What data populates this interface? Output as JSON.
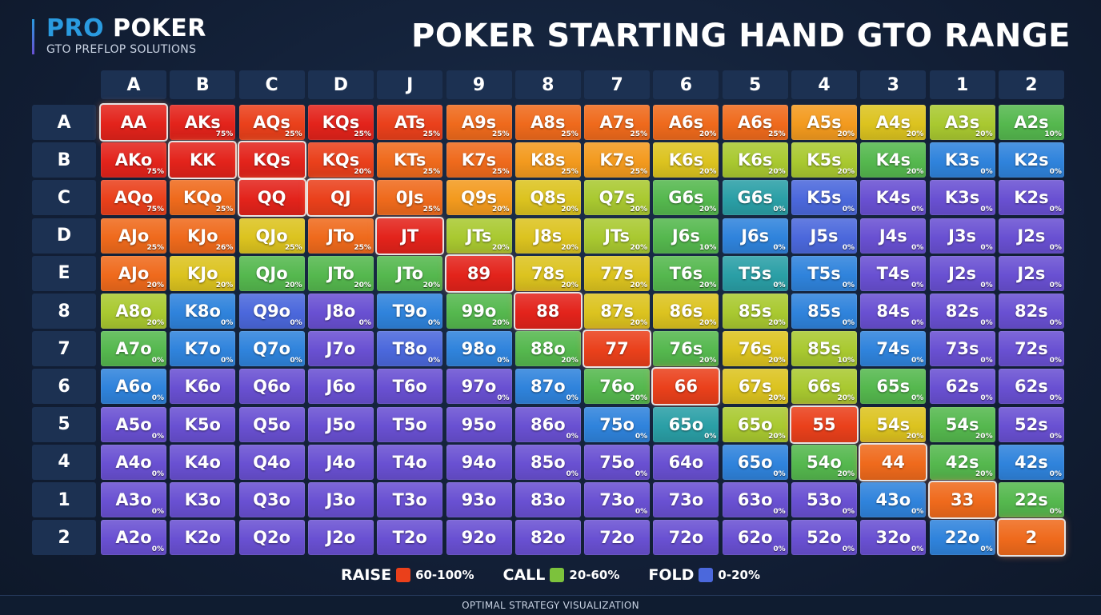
{
  "brand": {
    "pro": "PRO",
    "poker": "POKER",
    "tagline": "GTO PREFLOP SOLUTIONS"
  },
  "title": "POKER STARTING HAND GTO RANGE",
  "table": {
    "columns": [
      "A",
      "B",
      "C",
      "D",
      "J",
      "9",
      "8",
      "7",
      "6",
      "5",
      "4",
      "3",
      "1",
      "2"
    ],
    "rows": [
      {
        "label": "A",
        "cells": [
          {
            "hand": "AA",
            "color": "#e3231b",
            "glow": true
          },
          {
            "hand": "AKs",
            "pct": "75%",
            "color": "#e3231b"
          },
          {
            "hand": "AQs",
            "pct": "25%",
            "color": "#ea401b"
          },
          {
            "hand": "KQs",
            "pct": "25%",
            "color": "#e3231b"
          },
          {
            "hand": "ATs",
            "pct": "25%",
            "color": "#ea401b"
          },
          {
            "hand": "A9s",
            "pct": "25%",
            "color": "#ef6a1c"
          },
          {
            "hand": "A8s",
            "pct": "25%",
            "color": "#ef6a1c"
          },
          {
            "hand": "A7s",
            "pct": "25%",
            "color": "#ef6a1c"
          },
          {
            "hand": "A6s",
            "pct": "20%",
            "color": "#ef6a1c"
          },
          {
            "hand": "A6s",
            "pct": "25%",
            "color": "#ef6a1c"
          },
          {
            "hand": "A5s",
            "pct": "20%",
            "color": "#f39a1e"
          },
          {
            "hand": "A4s",
            "pct": "20%",
            "color": "#dcc31f"
          },
          {
            "hand": "A3s",
            "pct": "20%",
            "color": "#a9c930"
          },
          {
            "hand": "A2s",
            "pct": "10%",
            "color": "#55b84e"
          }
        ]
      },
      {
        "label": "B",
        "cells": [
          {
            "hand": "AKo",
            "pct": "75%",
            "color": "#e3231b"
          },
          {
            "hand": "KK",
            "color": "#e3231b",
            "glow": true
          },
          {
            "hand": "KQs",
            "color": "#e3231b",
            "glow": true
          },
          {
            "hand": "KQs",
            "pct": "20%",
            "color": "#ea401b"
          },
          {
            "hand": "KTs",
            "pct": "25%",
            "color": "#ef6a1c"
          },
          {
            "hand": "K7s",
            "pct": "25%",
            "color": "#ef6a1c"
          },
          {
            "hand": "K8s",
            "pct": "25%",
            "color": "#f39a1e"
          },
          {
            "hand": "K7s",
            "pct": "25%",
            "color": "#f39a1e"
          },
          {
            "hand": "K6s",
            "pct": "20%",
            "color": "#dcc31f"
          },
          {
            "hand": "K6s",
            "pct": "20%",
            "color": "#a9c930"
          },
          {
            "hand": "K5s",
            "pct": "20%",
            "color": "#a9c930"
          },
          {
            "hand": "K4s",
            "pct": "20%",
            "color": "#55b84e"
          },
          {
            "hand": "K3s",
            "pct": "0%",
            "color": "#2f83dc"
          },
          {
            "hand": "K2s",
            "pct": "0%",
            "color": "#2f83dc"
          }
        ]
      },
      {
        "label": "C",
        "cells": [
          {
            "hand": "AQo",
            "pct": "75%",
            "color": "#ea401b"
          },
          {
            "hand": "KQo",
            "pct": "25%",
            "color": "#ef6a1c"
          },
          {
            "hand": "QQ",
            "color": "#e3231b",
            "glow": true
          },
          {
            "hand": "QJ",
            "color": "#ea401b",
            "glow": true
          },
          {
            "hand": "0Js",
            "pct": "25%",
            "color": "#ef6a1c"
          },
          {
            "hand": "Q9s",
            "pct": "20%",
            "color": "#f39a1e"
          },
          {
            "hand": "Q8s",
            "pct": "20%",
            "color": "#dcc31f"
          },
          {
            "hand": "Q7s",
            "pct": "20%",
            "color": "#a9c930"
          },
          {
            "hand": "G6s",
            "pct": "20%",
            "color": "#55b84e"
          },
          {
            "hand": "G6s",
            "pct": "0%",
            "color": "#2a9fa6"
          },
          {
            "hand": "K5s",
            "pct": "0%",
            "color": "#4b68dc"
          },
          {
            "hand": "K4s",
            "pct": "0%",
            "color": "#6950d2"
          },
          {
            "hand": "K3s",
            "pct": "0%",
            "color": "#6950d2"
          },
          {
            "hand": "K2s",
            "pct": "0%",
            "color": "#6950d2"
          }
        ]
      },
      {
        "label": "D",
        "cells": [
          {
            "hand": "AJo",
            "pct": "25%",
            "color": "#ef6a1c"
          },
          {
            "hand": "KJo",
            "pct": "26%",
            "color": "#ef6a1c"
          },
          {
            "hand": "QJo",
            "pct": "25%",
            "color": "#dcc31f"
          },
          {
            "hand": "JTo",
            "pct": "25%",
            "color": "#ef6a1c"
          },
          {
            "hand": "JT",
            "color": "#e3231b",
            "glow": true
          },
          {
            "hand": "JTs",
            "pct": "20%",
            "color": "#a9c930"
          },
          {
            "hand": "J8s",
            "pct": "20%",
            "color": "#dcc31f"
          },
          {
            "hand": "JTs",
            "pct": "20%",
            "color": "#a9c930"
          },
          {
            "hand": "J6s",
            "pct": "10%",
            "color": "#55b84e"
          },
          {
            "hand": "J6s",
            "pct": "0%",
            "color": "#2f83dc"
          },
          {
            "hand": "J5s",
            "pct": "0%",
            "color": "#4b68dc"
          },
          {
            "hand": "J4s",
            "pct": "0%",
            "color": "#6950d2"
          },
          {
            "hand": "J3s",
            "pct": "0%",
            "color": "#6950d2"
          },
          {
            "hand": "J2s",
            "pct": "0%",
            "color": "#6950d2"
          }
        ]
      },
      {
        "label": "E",
        "cells": [
          {
            "hand": "AJo",
            "pct": "20%",
            "color": "#ef6a1c"
          },
          {
            "hand": "KJo",
            "pct": "20%",
            "color": "#dcc31f"
          },
          {
            "hand": "QJo",
            "pct": "20%",
            "color": "#55b84e"
          },
          {
            "hand": "JTo",
            "pct": "20%",
            "color": "#55b84e"
          },
          {
            "hand": "JTo",
            "pct": "20%",
            "color": "#55b84e"
          },
          {
            "hand": "89",
            "color": "#e3231b",
            "glow": true
          },
          {
            "hand": "78s",
            "pct": "20%",
            "color": "#dcc31f"
          },
          {
            "hand": "77s",
            "pct": "20%",
            "color": "#dcc31f"
          },
          {
            "hand": "T6s",
            "pct": "20%",
            "color": "#55b84e"
          },
          {
            "hand": "T5s",
            "pct": "0%",
            "color": "#2a9fa6"
          },
          {
            "hand": "T5s",
            "pct": "0%",
            "color": "#2f83dc"
          },
          {
            "hand": "T4s",
            "pct": "0%",
            "color": "#6950d2"
          },
          {
            "hand": "J2s",
            "pct": "0%",
            "color": "#6950d2"
          },
          {
            "hand": "J2s",
            "pct": "0%",
            "color": "#6950d2"
          }
        ]
      },
      {
        "label": "8",
        "cells": [
          {
            "hand": "A8o",
            "pct": "20%",
            "color": "#a9c930"
          },
          {
            "hand": "K8o",
            "pct": "0%",
            "color": "#2f83dc"
          },
          {
            "hand": "Q9o",
            "pct": "0%",
            "color": "#4b68dc"
          },
          {
            "hand": "J8o",
            "pct": "0%",
            "color": "#6950d2"
          },
          {
            "hand": "T9o",
            "pct": "0%",
            "color": "#2f83dc"
          },
          {
            "hand": "99o",
            "pct": "20%",
            "color": "#55b84e"
          },
          {
            "hand": "88",
            "color": "#e3231b",
            "glow": true
          },
          {
            "hand": "87s",
            "pct": "20%",
            "color": "#dcc31f"
          },
          {
            "hand": "86s",
            "pct": "20%",
            "color": "#dcc31f"
          },
          {
            "hand": "85s",
            "pct": "20%",
            "color": "#a9c930"
          },
          {
            "hand": "85s",
            "pct": "0%",
            "color": "#2f83dc"
          },
          {
            "hand": "84s",
            "pct": "0%",
            "color": "#6950d2"
          },
          {
            "hand": "82s",
            "pct": "0%",
            "color": "#6950d2"
          },
          {
            "hand": "82s",
            "pct": "0%",
            "color": "#6950d2"
          }
        ]
      },
      {
        "label": "7",
        "cells": [
          {
            "hand": "A7o",
            "pct": "0%",
            "color": "#55b84e"
          },
          {
            "hand": "K7o",
            "pct": "0%",
            "color": "#2f83dc"
          },
          {
            "hand": "Q7o",
            "pct": "0%",
            "color": "#2f83dc"
          },
          {
            "hand": "J7o",
            "color": "#6950d2"
          },
          {
            "hand": "T8o",
            "pct": "0%",
            "color": "#4b68dc"
          },
          {
            "hand": "98o",
            "pct": "0%",
            "color": "#2f83dc"
          },
          {
            "hand": "88o",
            "pct": "20%",
            "color": "#55b84e"
          },
          {
            "hand": "77",
            "color": "#ea401b",
            "glow": true
          },
          {
            "hand": "76s",
            "pct": "20%",
            "color": "#55b84e"
          },
          {
            "hand": "76s",
            "pct": "20%",
            "color": "#dcc31f"
          },
          {
            "hand": "85s",
            "pct": "10%",
            "color": "#a9c930"
          },
          {
            "hand": "74s",
            "pct": "0%",
            "color": "#2f83dc"
          },
          {
            "hand": "73s",
            "pct": "0%",
            "color": "#6950d2"
          },
          {
            "hand": "72s",
            "pct": "0%",
            "color": "#6950d2"
          }
        ]
      },
      {
        "label": "6",
        "cells": [
          {
            "hand": "A6o",
            "pct": "0%",
            "color": "#2f83dc"
          },
          {
            "hand": "K6o",
            "color": "#6950d2"
          },
          {
            "hand": "Q6o",
            "color": "#6950d2"
          },
          {
            "hand": "J6o",
            "color": "#6950d2"
          },
          {
            "hand": "T6o",
            "color": "#6950d2"
          },
          {
            "hand": "97o",
            "pct": "0%",
            "color": "#6950d2"
          },
          {
            "hand": "87o",
            "pct": "0%",
            "color": "#2f83dc"
          },
          {
            "hand": "76o",
            "pct": "20%",
            "color": "#55b84e"
          },
          {
            "hand": "66",
            "color": "#ea401b",
            "glow": true
          },
          {
            "hand": "67s",
            "pct": "20%",
            "color": "#dcc31f"
          },
          {
            "hand": "66s",
            "pct": "20%",
            "color": "#a9c930"
          },
          {
            "hand": "65s",
            "pct": "0%",
            "color": "#55b84e"
          },
          {
            "hand": "62s",
            "pct": "0%",
            "color": "#6950d2"
          },
          {
            "hand": "62s",
            "pct": "0%",
            "color": "#6950d2"
          }
        ]
      },
      {
        "label": "5",
        "cells": [
          {
            "hand": "A5o",
            "pct": "0%",
            "color": "#6950d2"
          },
          {
            "hand": "K5o",
            "color": "#6950d2"
          },
          {
            "hand": "Q5o",
            "color": "#6950d2"
          },
          {
            "hand": "J5o",
            "color": "#6950d2"
          },
          {
            "hand": "T5o",
            "color": "#6950d2"
          },
          {
            "hand": "95o",
            "color": "#6950d2"
          },
          {
            "hand": "86o",
            "pct": "0%",
            "color": "#6950d2"
          },
          {
            "hand": "75o",
            "pct": "0%",
            "color": "#2f83dc"
          },
          {
            "hand": "65o",
            "pct": "0%",
            "color": "#2a9fa6"
          },
          {
            "hand": "65o",
            "pct": "20%",
            "color": "#a9c930"
          },
          {
            "hand": "55",
            "color": "#ea401b",
            "glow": true
          },
          {
            "hand": "54s",
            "pct": "20%",
            "color": "#dcc31f"
          },
          {
            "hand": "54s",
            "pct": "20%",
            "color": "#55b84e"
          },
          {
            "hand": "52s",
            "pct": "0%",
            "color": "#6950d2"
          }
        ]
      },
      {
        "label": "4",
        "cells": [
          {
            "hand": "A4o",
            "pct": "0%",
            "color": "#6950d2"
          },
          {
            "hand": "K4o",
            "color": "#6950d2"
          },
          {
            "hand": "Q4o",
            "color": "#6950d2"
          },
          {
            "hand": "J4o",
            "color": "#6950d2"
          },
          {
            "hand": "T4o",
            "color": "#6950d2"
          },
          {
            "hand": "94o",
            "color": "#6950d2"
          },
          {
            "hand": "85o",
            "pct": "0%",
            "color": "#6950d2"
          },
          {
            "hand": "75o",
            "pct": "0%",
            "color": "#6950d2"
          },
          {
            "hand": "64o",
            "color": "#6950d2"
          },
          {
            "hand": "65o",
            "pct": "0%",
            "color": "#2f83dc"
          },
          {
            "hand": "54o",
            "pct": "20%",
            "color": "#55b84e"
          },
          {
            "hand": "44",
            "color": "#ef6a1c",
            "glow": true
          },
          {
            "hand": "42s",
            "pct": "20%",
            "color": "#55b84e"
          },
          {
            "hand": "42s",
            "pct": "0%",
            "color": "#2f83dc"
          }
        ]
      },
      {
        "label": "1",
        "cells": [
          {
            "hand": "A3o",
            "pct": "0%",
            "color": "#6950d2"
          },
          {
            "hand": "K3o",
            "color": "#6950d2"
          },
          {
            "hand": "Q3o",
            "color": "#6950d2"
          },
          {
            "hand": "J3o",
            "color": "#6950d2"
          },
          {
            "hand": "T3o",
            "color": "#6950d2"
          },
          {
            "hand": "93o",
            "color": "#6950d2"
          },
          {
            "hand": "83o",
            "color": "#6950d2"
          },
          {
            "hand": "73o",
            "pct": "0%",
            "color": "#6950d2"
          },
          {
            "hand": "73o",
            "color": "#6950d2"
          },
          {
            "hand": "63o",
            "pct": "0%",
            "color": "#6950d2"
          },
          {
            "hand": "53o",
            "pct": "0%",
            "color": "#6950d2"
          },
          {
            "hand": "43o",
            "pct": "0%",
            "color": "#2f83dc"
          },
          {
            "hand": "33",
            "color": "#ef6a1c",
            "glow": true
          },
          {
            "hand": "22s",
            "pct": "0%",
            "color": "#55b84e"
          }
        ]
      },
      {
        "label": "2",
        "cells": [
          {
            "hand": "A2o",
            "pct": "0%",
            "color": "#6950d2"
          },
          {
            "hand": "K2o",
            "color": "#6950d2"
          },
          {
            "hand": "Q2o",
            "color": "#6950d2"
          },
          {
            "hand": "J2o",
            "color": "#6950d2"
          },
          {
            "hand": "T2o",
            "color": "#6950d2"
          },
          {
            "hand": "92o",
            "color": "#6950d2"
          },
          {
            "hand": "82o",
            "color": "#6950d2"
          },
          {
            "hand": "72o",
            "color": "#6950d2"
          },
          {
            "hand": "72o",
            "color": "#6950d2"
          },
          {
            "hand": "62o",
            "pct": "0%",
            "color": "#6950d2"
          },
          {
            "hand": "52o",
            "pct": "0%",
            "color": "#6950d2"
          },
          {
            "hand": "32o",
            "pct": "0%",
            "color": "#6950d2"
          },
          {
            "hand": "22o",
            "pct": "0%",
            "color": "#2f83dc"
          },
          {
            "hand": "2",
            "color": "#ef6a1c",
            "glow": true
          }
        ]
      }
    ]
  },
  "legend": [
    {
      "name": "RAISE",
      "range": "60-100%",
      "color": "#ea401b"
    },
    {
      "name": "CALL",
      "range": "20-60%",
      "color": "#7cc23c"
    },
    {
      "name": "FOLD",
      "range": "0-20%",
      "color": "#4b68dc"
    }
  ],
  "footer": "OPTIMAL STRATEGY VISUALIZATION"
}
